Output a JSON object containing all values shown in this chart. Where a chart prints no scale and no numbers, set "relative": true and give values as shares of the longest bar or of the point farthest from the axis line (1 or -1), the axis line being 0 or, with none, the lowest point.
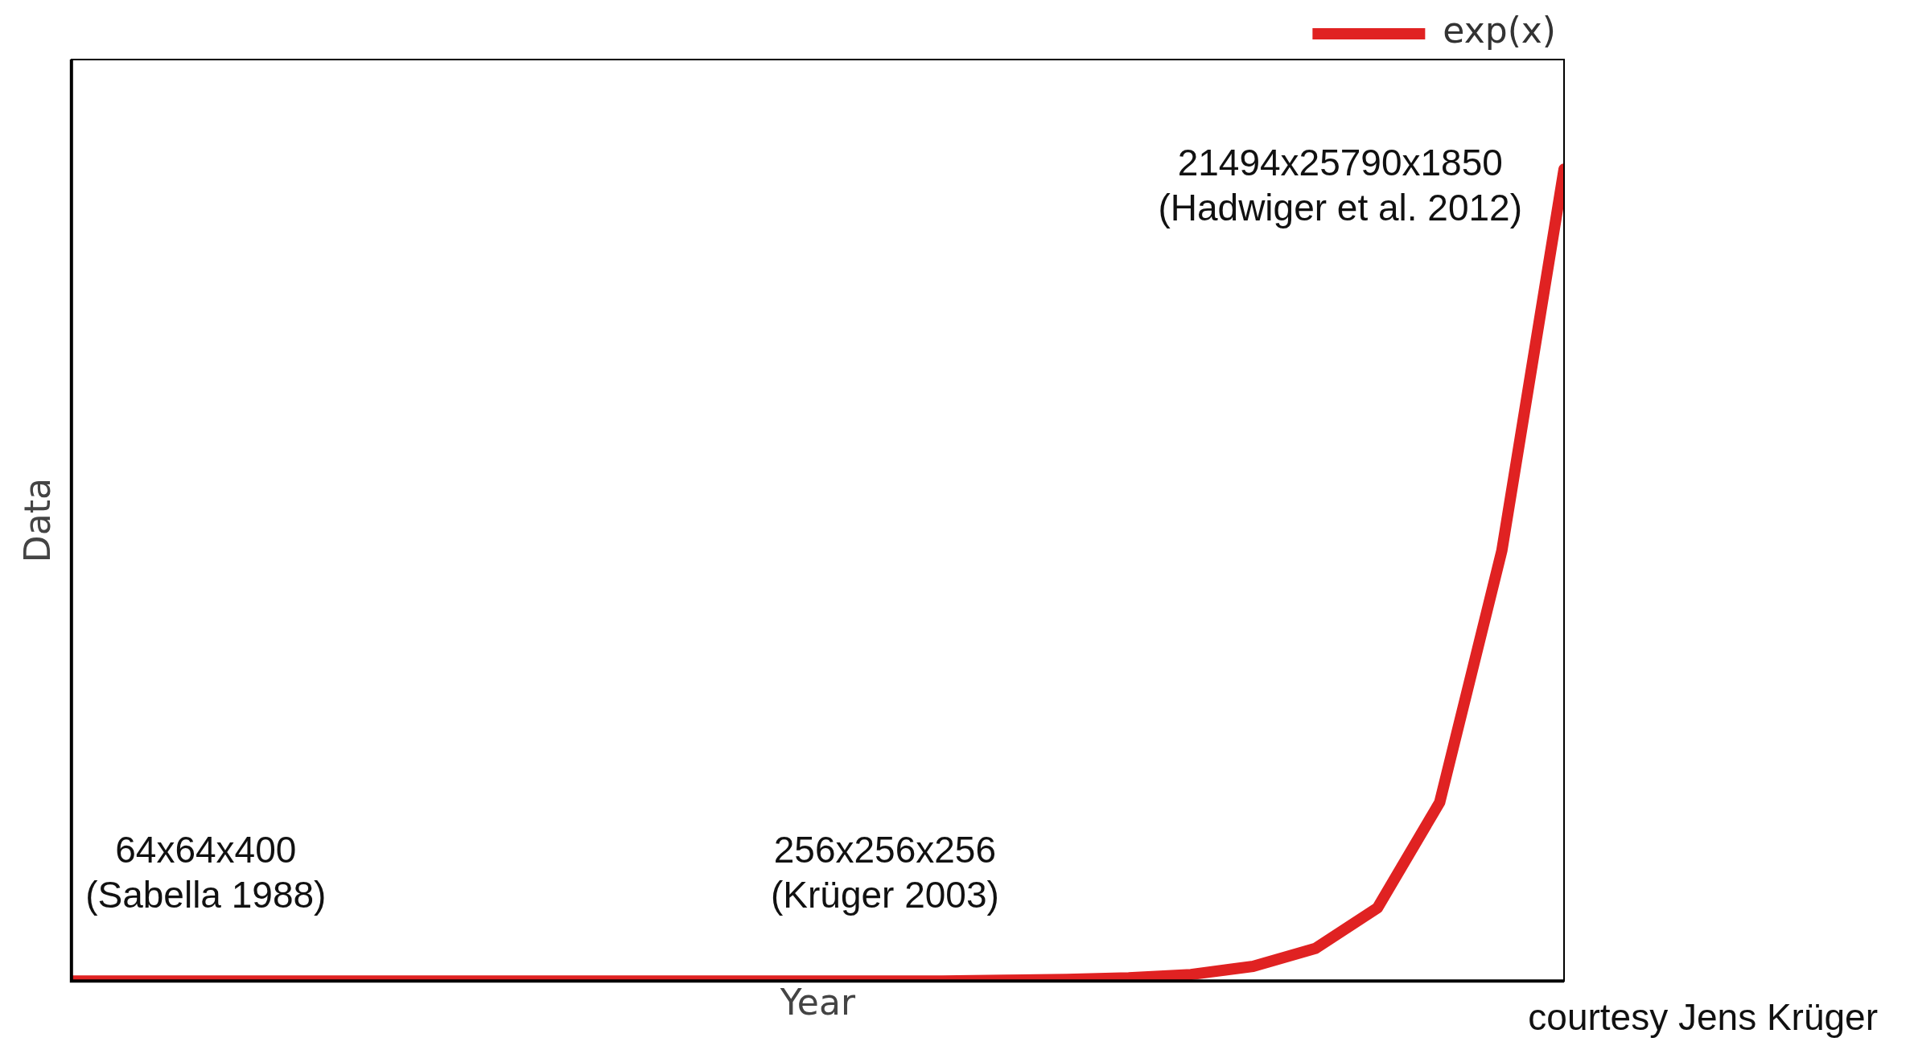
{
  "chart_data": {
    "type": "line",
    "relative": true,
    "xlabel": "Year",
    "ylabel": "Data",
    "legend": "top right",
    "grid": false,
    "marker": "none",
    "line_style": "solid",
    "tick_labels": false,
    "categories": [
      null,
      null,
      null,
      null,
      null,
      null,
      null,
      null,
      null,
      null,
      null,
      null,
      null,
      null,
      null,
      null,
      null,
      null,
      null,
      null,
      null,
      null,
      null,
      null,
      null
    ],
    "series": [
      {
        "name": "exp(x)",
        "color": "#e02222",
        "values": [
          0,
          0,
          0,
          0,
          0,
          0,
          0,
          0,
          0,
          0,
          0,
          0,
          0,
          0,
          0,
          0.001,
          0.002,
          0.004,
          0.008,
          0.018,
          0.04,
          0.09,
          0.22,
          0.53,
          1
        ]
      }
    ],
    "annotations": [
      "64x64x400\n(Sabella 1988)",
      "256x256x256\n(Krüger 2003)",
      "21494x25790x1850\n(Hadwiger et al. 2012)",
      "courtesy Jens Krüger"
    ]
  }
}
